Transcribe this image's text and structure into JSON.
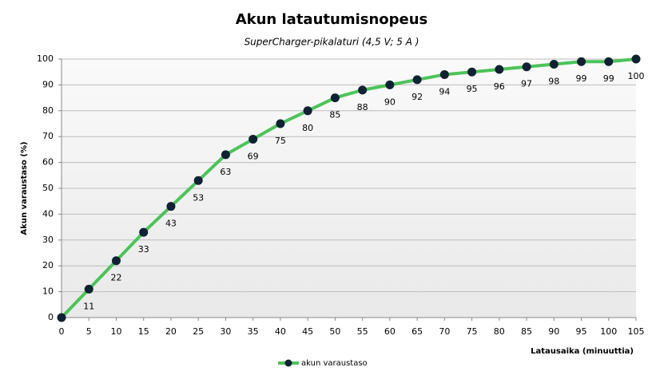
{
  "chart_data": {
    "type": "line",
    "title": "Akun latautumisnopeus",
    "subtitle": "SuperCharger-pikalaturi  (4,5 V; 5 A )",
    "xlabel": "Latausaika  (minuuttia)",
    "ylabel": "Akun varaustaso  (%)",
    "x": [
      0,
      5,
      10,
      15,
      20,
      25,
      30,
      35,
      40,
      45,
      50,
      55,
      60,
      65,
      70,
      75,
      80,
      85,
      90,
      95,
      100,
      105
    ],
    "series": [
      {
        "name": "akun varaustaso",
        "color": "#4cc35a",
        "marker_color": "#0e2233",
        "values": [
          0,
          11,
          22,
          33,
          43,
          53,
          63,
          69,
          75,
          80,
          85,
          88,
          90,
          92,
          94,
          95,
          96,
          97,
          98,
          99,
          99,
          100
        ],
        "value_labels": [
          null,
          "11",
          "22",
          "33",
          "43",
          "53",
          "63",
          "69",
          "75",
          "80",
          "85",
          "88",
          "90",
          "92",
          "94",
          "95",
          "96",
          "97",
          "98",
          "99",
          "99",
          "100"
        ]
      }
    ],
    "xlim": [
      0,
      105
    ],
    "xticks": [
      0,
      5,
      10,
      15,
      20,
      25,
      30,
      35,
      40,
      45,
      50,
      55,
      60,
      65,
      70,
      75,
      80,
      85,
      90,
      95,
      100,
      105
    ],
    "ylim": [
      0,
      100
    ],
    "yticks": [
      0,
      10,
      20,
      30,
      40,
      50,
      60,
      70,
      80,
      90,
      100
    ],
    "grid": true,
    "legend": "bottom"
  }
}
